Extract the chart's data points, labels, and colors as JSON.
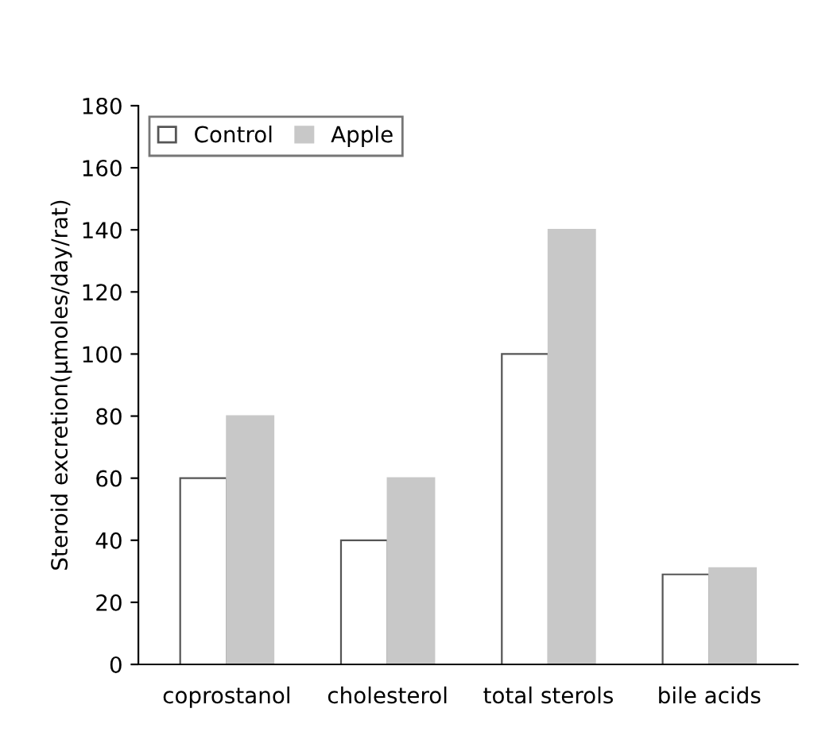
{
  "chart_data": {
    "type": "bar",
    "ylabel": "Steroid excretion(μmoles/day/rat)",
    "categories": [
      "coprostanol",
      "cholesterol",
      "total sterols",
      "bile acids"
    ],
    "series": [
      {
        "name": "Control",
        "color": "#ffffff",
        "values": [
          60,
          40,
          100,
          29
        ]
      },
      {
        "name": "Apple",
        "color": "#c8c8c8",
        "values": [
          80,
          60,
          140,
          31
        ]
      }
    ],
    "ylim": [
      0,
      180
    ],
    "yticks": [
      0,
      20,
      40,
      60,
      80,
      100,
      120,
      140,
      160,
      180
    ],
    "grid": false,
    "legend": "top left"
  }
}
